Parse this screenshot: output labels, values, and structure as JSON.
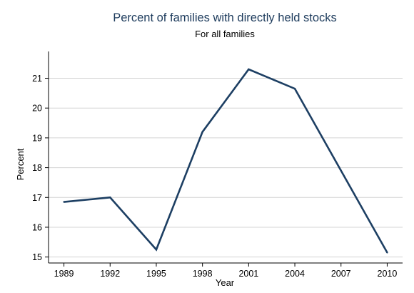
{
  "chart_data": {
    "type": "line",
    "title": "Percent of families with directly held stocks",
    "subtitle": "For all families",
    "xlabel": "Year",
    "ylabel": "Percent",
    "x": [
      1989,
      1992,
      1995,
      1998,
      2001,
      2004,
      2007,
      2010
    ],
    "x_tick_labels": [
      "1989",
      "1992",
      "1995",
      "1998",
      "2001",
      "2004",
      "2007",
      "2010"
    ],
    "y_ticks": [
      15,
      16,
      17,
      18,
      19,
      20,
      21
    ],
    "y_tick_labels": [
      "15",
      "16",
      "17",
      "18",
      "19",
      "20",
      "21"
    ],
    "series": [
      {
        "values": [
          16.85,
          17.0,
          15.25,
          19.2,
          21.3,
          20.65,
          17.9,
          15.15
        ],
        "color": "#1d3f63"
      }
    ],
    "xlim": [
      1988,
      2011
    ],
    "ylim": [
      14.8,
      21.9
    ],
    "grid": "horizontal",
    "legend": "none"
  }
}
